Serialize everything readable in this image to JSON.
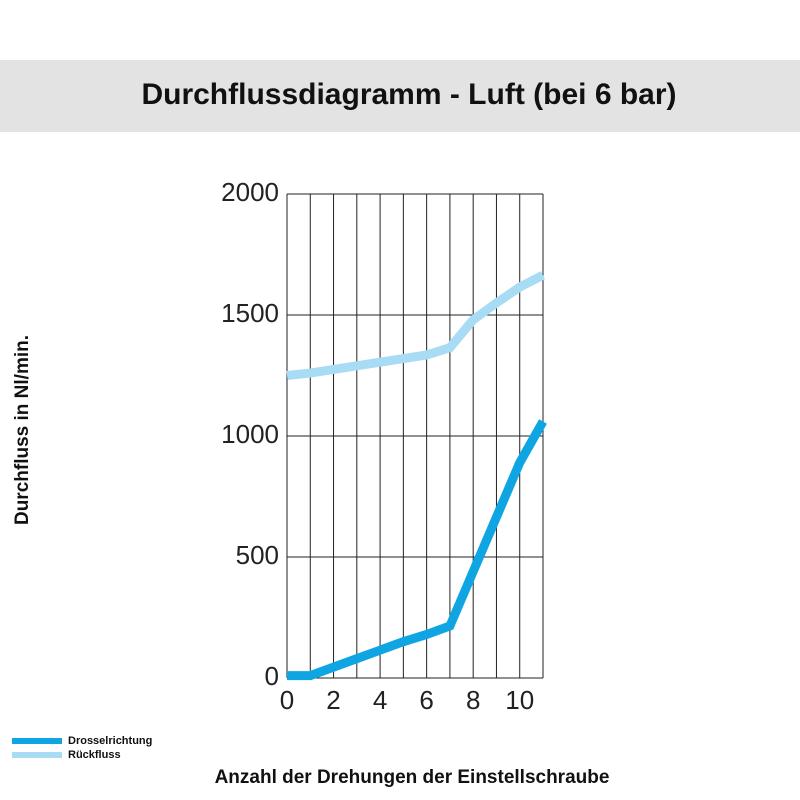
{
  "chart_data": {
    "type": "line",
    "title": "Durchflussdiagramm - Luft (bei 6 bar)",
    "x_label": "Anzahl der Drehungen der Einstellschraube",
    "y_label": "Durchfluss in Nl/min.",
    "x": [
      0,
      1,
      2,
      3,
      4,
      5,
      6,
      7,
      8,
      9,
      10,
      11
    ],
    "series": [
      {
        "name": "Drosselrichtung",
        "color": "#0ea5e2",
        "values": [
          10,
          10,
          45,
          80,
          115,
          150,
          180,
          215,
          440,
          665,
          890,
          1060
        ]
      },
      {
        "name": "Rückfluss",
        "color": "#a8dcf5",
        "values": [
          1250,
          1260,
          1275,
          1290,
          1305,
          1320,
          1335,
          1365,
          1480,
          1550,
          1615,
          1665
        ]
      }
    ],
    "xlim": [
      0,
      11
    ],
    "xticks": [
      0,
      2,
      4,
      6,
      8,
      10
    ],
    "ylim": [
      0,
      2000
    ],
    "yticks": [
      0,
      500,
      1000,
      1500,
      2000
    ],
    "grid": true
  }
}
